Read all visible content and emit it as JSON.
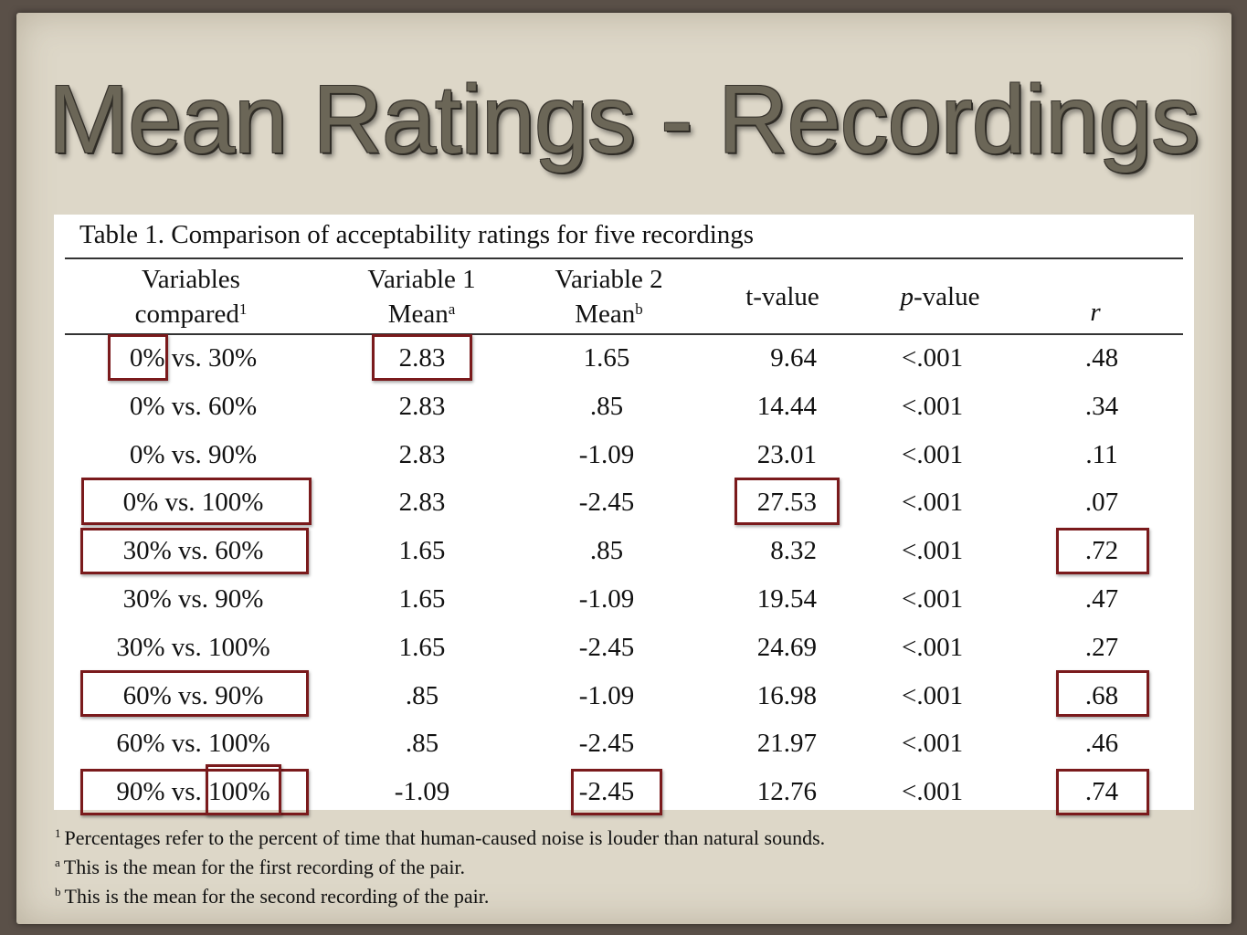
{
  "slide": {
    "title": "Mean Ratings - Recordings"
  },
  "table": {
    "caption": "Table 1. Comparison of acceptability ratings for five recordings",
    "headers": {
      "col1_line1": "Variables",
      "col1_line2": "compared",
      "col1_sup": "1",
      "col2_line1": "Variable 1",
      "col2_line2": "Mean",
      "col2_sup": "a",
      "col3_line1": "Variable 2",
      "col3_line2": "Mean",
      "col3_sup": "b",
      "col4": "t-value",
      "col5_italic": "p",
      "col5_rest": "-value",
      "col6": "r"
    },
    "rows": [
      {
        "compared": "0% vs. 30%",
        "v1": "2.83",
        "v2": "1.65",
        "t": "9.64",
        "p": "<.001",
        "r": ".48"
      },
      {
        "compared": "0% vs. 60%",
        "v1": "2.83",
        "v2": ".85",
        "t": "14.44",
        "p": "<.001",
        "r": ".34"
      },
      {
        "compared": "0% vs. 90%",
        "v1": "2.83",
        "v2": "-1.09",
        "t": "23.01",
        "p": "<.001",
        "r": ".11"
      },
      {
        "compared": "0% vs. 100%",
        "v1": "2.83",
        "v2": "-2.45",
        "t": "27.53",
        "p": "<.001",
        "r": ".07"
      },
      {
        "compared": "30% vs. 60%",
        "v1": "1.65",
        "v2": ".85",
        "t": "8.32",
        "p": "<.001",
        "r": ".72"
      },
      {
        "compared": "30% vs. 90%",
        "v1": "1.65",
        "v2": "-1.09",
        "t": "19.54",
        "p": "<.001",
        "r": ".47"
      },
      {
        "compared": "30% vs. 100%",
        "v1": "1.65",
        "v2": "-2.45",
        "t": "24.69",
        "p": "<.001",
        "r": ".27"
      },
      {
        "compared": "60% vs. 90%",
        "v1": ".85",
        "v2": "-1.09",
        "t": "16.98",
        "p": "<.001",
        "r": ".68"
      },
      {
        "compared": "60% vs. 100%",
        "v1": ".85",
        "v2": "-2.45",
        "t": "21.97",
        "p": "<.001",
        "r": ".46"
      },
      {
        "compared": "90% vs. 100%",
        "v1": "-1.09",
        "v2": "-2.45",
        "t": "12.76",
        "p": "<.001",
        "r": ".74"
      }
    ],
    "highlight_color": "#7a1a1c"
  },
  "footnotes": [
    {
      "mark": "1",
      "text": "Percentages refer to the percent of time that human-caused noise is louder than natural sounds."
    },
    {
      "mark": "a",
      "text": "This is the mean for the first recording of the pair."
    },
    {
      "mark": "b",
      "text": "This is the mean for the second recording of the pair."
    }
  ]
}
